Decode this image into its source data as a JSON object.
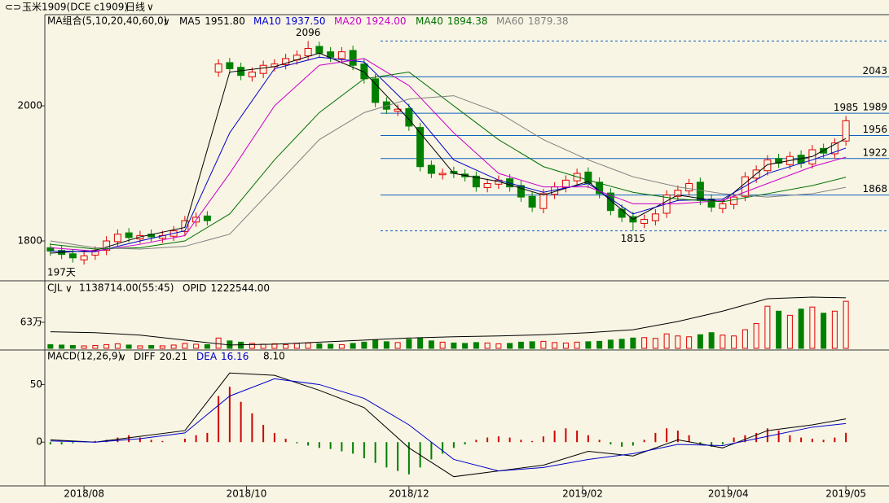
{
  "header": {
    "symbol": "玉米1909(DCE c1909)",
    "period": "日线"
  },
  "chart_data": [
    {
      "type": "candlestick",
      "title": "MA组合(5,10,20,40,60,0)",
      "days_label": "197天",
      "xlim": [
        -0.5,
        71.5
      ],
      "xticks": [
        {
          "value": 3,
          "label": "2018/08"
        },
        {
          "value": 17.5,
          "label": "2018/10"
        },
        {
          "value": 32,
          "label": "2018/12"
        },
        {
          "value": 47.5,
          "label": "2019/02"
        },
        {
          "value": 60.5,
          "label": "2019/04"
        },
        {
          "value": 71,
          "label": "2019/05"
        }
      ],
      "ylim": [
        1741,
        2135
      ],
      "yticks": [
        1800,
        2000
      ],
      "up_color": "#e00000",
      "down_color": "#008000",
      "open": [
        1790,
        1786,
        1781,
        1772,
        1779,
        1786,
        1799,
        1812,
        1803,
        1810,
        1804,
        1807,
        1814,
        1828,
        1837,
        2050,
        2064,
        2057,
        2043,
        2048,
        2058,
        2061,
        2068,
        2074,
        2088,
        2080,
        2070,
        2082,
        2062,
        2040,
        2006,
        1992,
        1996,
        1968,
        1912,
        1898,
        1903,
        1899,
        1896,
        1879,
        1884,
        1892,
        1882,
        1866,
        1848,
        1869,
        1879,
        1889,
        1902,
        1887,
        1871,
        1847,
        1836,
        1826,
        1830,
        1841,
        1866,
        1874,
        1887,
        1862,
        1848,
        1854,
        1866,
        1893,
        1904,
        1922,
        1913,
        1927,
        1914,
        1937,
        1929,
        1948
      ],
      "high": [
        1797,
        1793,
        1788,
        1785,
        1792,
        1807,
        1817,
        1819,
        1815,
        1817,
        1815,
        1822,
        1837,
        1842,
        1844,
        2069,
        2071,
        2064,
        2057,
        2067,
        2069,
        2077,
        2082,
        2096,
        2095,
        2087,
        2087,
        2089,
        2069,
        2047,
        2013,
        2002,
        2003,
        1975,
        1919,
        1907,
        1910,
        1906,
        1903,
        1892,
        1897,
        1899,
        1889,
        1873,
        1877,
        1887,
        1897,
        1907,
        1909,
        1894,
        1878,
        1854,
        1843,
        1839,
        1847,
        1875,
        1882,
        1892,
        1894,
        1869,
        1862,
        1872,
        1902,
        1912,
        1927,
        1929,
        1932,
        1934,
        1942,
        1944,
        1952,
        1985
      ],
      "low": [
        1778,
        1773,
        1768,
        1765,
        1772,
        1779,
        1792,
        1798,
        1796,
        1799,
        1797,
        1800,
        1807,
        1821,
        1823,
        2043,
        2048,
        2038,
        2036,
        2041,
        2051,
        2054,
        2061,
        2067,
        2071,
        2065,
        2063,
        2053,
        2033,
        1998,
        1988,
        1985,
        1963,
        1903,
        1893,
        1891,
        1893,
        1888,
        1873,
        1872,
        1877,
        1873,
        1858,
        1843,
        1841,
        1862,
        1872,
        1882,
        1878,
        1863,
        1838,
        1828,
        1815,
        1819,
        1823,
        1834,
        1859,
        1867,
        1853,
        1843,
        1841,
        1847,
        1859,
        1886,
        1897,
        1908,
        1906,
        1908,
        1907,
        1923,
        1922,
        1941
      ],
      "close": [
        1785,
        1780,
        1775,
        1778,
        1785,
        1800,
        1810,
        1805,
        1808,
        1806,
        1808,
        1815,
        1830,
        1835,
        1830,
        2062,
        2055,
        2045,
        2050,
        2060,
        2062,
        2070,
        2075,
        2085,
        2078,
        2072,
        2080,
        2060,
        2040,
        2005,
        1995,
        1995,
        1970,
        1910,
        1900,
        1900,
        1900,
        1895,
        1880,
        1885,
        1890,
        1880,
        1865,
        1850,
        1870,
        1880,
        1890,
        1900,
        1885,
        1870,
        1845,
        1835,
        1828,
        1832,
        1840,
        1868,
        1875,
        1885,
        1860,
        1850,
        1855,
        1865,
        1895,
        1905,
        1920,
        1915,
        1925,
        1915,
        1935,
        1930,
        1945,
        1978
      ],
      "series_x": [
        0,
        4,
        8,
        12,
        16,
        20,
        24,
        28,
        32,
        36,
        40,
        44,
        48,
        52,
        56,
        60,
        64,
        68,
        71
      ],
      "series": [
        {
          "name": "MA5",
          "color": "#000000",
          "current": {
            "value": 1951.8,
            "label": "1951.80"
          },
          "values": [
            1782,
            1786,
            1806,
            1820,
            2050,
            2058,
            2078,
            2050,
            1980,
            1900,
            1888,
            1868,
            1888,
            1832,
            1868,
            1858,
            1913,
            1925,
            1951.8
          ]
        },
        {
          "name": "MA10",
          "color": "#0000cc",
          "current": {
            "value": 1937.5,
            "label": "1937.50"
          },
          "values": [
            1785,
            1784,
            1800,
            1815,
            1960,
            2055,
            2072,
            2065,
            2000,
            1920,
            1890,
            1872,
            1885,
            1840,
            1860,
            1862,
            1900,
            1920,
            1937.5
          ]
        },
        {
          "name": "MA20",
          "color": "#cc00cc",
          "current": {
            "value": 1924,
            "label": "1924.00"
          },
          "values": [
            1790,
            1785,
            1795,
            1808,
            1900,
            2000,
            2060,
            2070,
            2030,
            1960,
            1900,
            1880,
            1880,
            1855,
            1855,
            1860,
            1885,
            1910,
            1924
          ]
        },
        {
          "name": "MA40",
          "color": "#007000",
          "current": {
            "value": 1894.38,
            "label": "1894.38"
          },
          "values": [
            1795,
            1788,
            1790,
            1800,
            1840,
            1920,
            1990,
            2040,
            2050,
            2000,
            1950,
            1910,
            1890,
            1872,
            1862,
            1858,
            1870,
            1882,
            1894.38
          ]
        },
        {
          "name": "MA60",
          "color": "#808080",
          "current": {
            "value": 1879.38,
            "label": "1879.38"
          },
          "values": [
            1800,
            1790,
            1788,
            1792,
            1810,
            1880,
            1950,
            1990,
            2010,
            2015,
            1990,
            1950,
            1920,
            1895,
            1880,
            1870,
            1865,
            1870,
            1879.38
          ]
        }
      ],
      "levels": [
        2043,
        1989,
        1956,
        1922,
        1868
      ],
      "level_color": "#1060c0",
      "dashed_levels": [
        2096,
        1815
      ],
      "annotations": [
        {
          "x": 23,
          "value": 2096,
          "color": "#cc0000"
        },
        {
          "x": 52,
          "value": 1815,
          "color": "#007000"
        },
        {
          "x": 71,
          "value": 1985,
          "color": "#cc0000"
        }
      ]
    },
    {
      "type": "volume",
      "title": "CJL",
      "summary": "1138714.00(55:45)",
      "oi_name": "OPID",
      "ylim": [
        0,
        1634000
      ],
      "yticks": [
        {
          "value": 630000,
          "label": "63万"
        }
      ],
      "values": [
        90000,
        80000,
        70000,
        60000,
        70000,
        90000,
        110000,
        80000,
        60000,
        70000,
        60000,
        80000,
        120000,
        100000,
        90000,
        250000,
        180000,
        150000,
        120000,
        100000,
        110000,
        90000,
        120000,
        130000,
        110000,
        100000,
        90000,
        120000,
        150000,
        200000,
        160000,
        140000,
        220000,
        250000,
        180000,
        150000,
        130000,
        120000,
        140000,
        130000,
        110000,
        120000,
        150000,
        160000,
        170000,
        140000,
        130000,
        150000,
        160000,
        170000,
        200000,
        220000,
        250000,
        260000,
        240000,
        350000,
        300000,
        280000,
        330000,
        380000,
        320000,
        300000,
        450000,
        600000,
        1020000,
        900000,
        800000,
        950000,
        1000000,
        850000,
        900000,
        1138714
      ],
      "oi": [
        400000,
        380000,
        320000,
        200000,
        80000,
        100000,
        150000,
        200000,
        250000,
        280000,
        300000,
        330000,
        380000,
        450000,
        650000,
        900000,
        1200000,
        1240000,
        1222544
      ],
      "oi_current": {
        "value": 1222544,
        "label": "1222544.00"
      }
    },
    {
      "type": "macd",
      "title": "MACD(12,26,9)",
      "ylim": [
        -38,
        80
      ],
      "yticks": [
        0,
        50
      ],
      "series": [
        {
          "name": "DIFF",
          "color": "#000000",
          "current": {
            "value": 20.21,
            "label": "20.21"
          },
          "values": [
            2,
            0,
            5,
            10,
            60,
            58,
            45,
            30,
            -5,
            -30,
            -25,
            -20,
            -8,
            -12,
            2,
            -5,
            10,
            15,
            20.21
          ]
        },
        {
          "name": "DEA",
          "color": "#0000cc",
          "current": {
            "value": 16.16,
            "label": "16.16"
          },
          "values": [
            1,
            0,
            3,
            8,
            40,
            55,
            50,
            38,
            15,
            -15,
            -25,
            -22,
            -15,
            -10,
            -2,
            -3,
            5,
            13,
            16.16
          ]
        }
      ],
      "histogram": {
        "current": {
          "value": 8.1,
          "label": "8.10"
        },
        "values": [
          -2,
          -2,
          -1,
          0,
          1,
          2,
          4,
          6,
          4,
          2,
          1,
          0,
          3,
          6,
          8,
          40,
          48,
          35,
          25,
          15,
          8,
          3,
          -1,
          -3,
          -5,
          -6,
          -8,
          -10,
          -14,
          -18,
          -22,
          -25,
          -28,
          -22,
          -15,
          -10,
          -5,
          -2,
          2,
          4,
          5,
          4,
          2,
          1,
          5,
          10,
          12,
          10,
          6,
          2,
          -2,
          -4,
          -3,
          2,
          8,
          12,
          10,
          6,
          -2,
          -4,
          -2,
          4,
          6,
          8,
          12,
          10,
          6,
          4,
          3,
          2,
          4,
          8.1
        ]
      }
    }
  ]
}
